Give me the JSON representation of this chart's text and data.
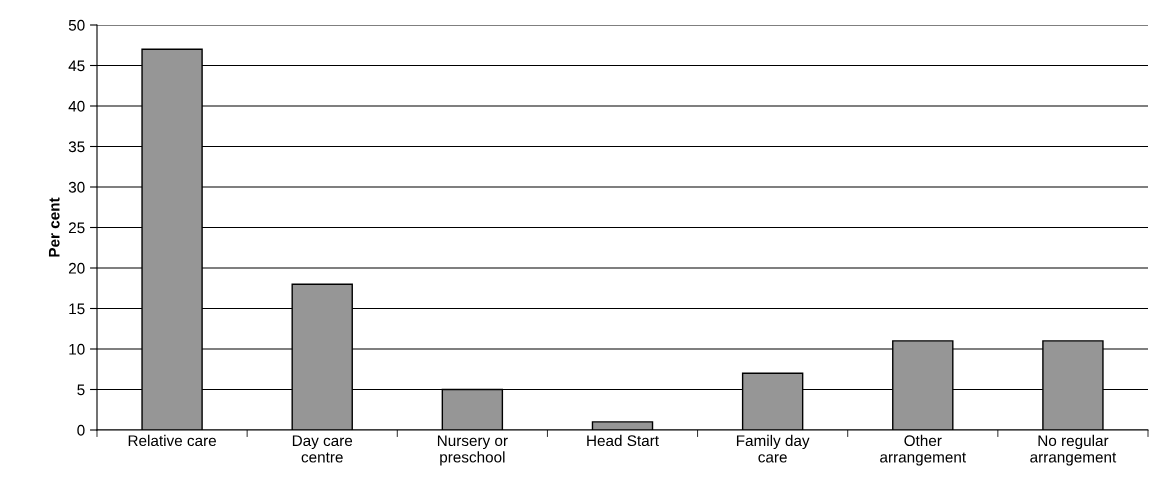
{
  "chart_data": {
    "type": "bar",
    "ylabel": "Per cent",
    "categories": [
      "Relative care",
      "Day care\ncentre",
      "Nursery or\npreschool",
      "Head Start",
      "Family day\ncare",
      "Other\narrangement",
      "No regular\narrangement"
    ],
    "values": [
      47,
      18,
      5,
      1,
      7,
      11,
      11
    ],
    "color": "#969696",
    "ylim": [
      0,
      50
    ],
    "yticks": [
      0,
      5,
      10,
      15,
      20,
      25,
      30,
      35,
      40,
      45,
      50
    ],
    "grid": "y",
    "legend": false
  }
}
